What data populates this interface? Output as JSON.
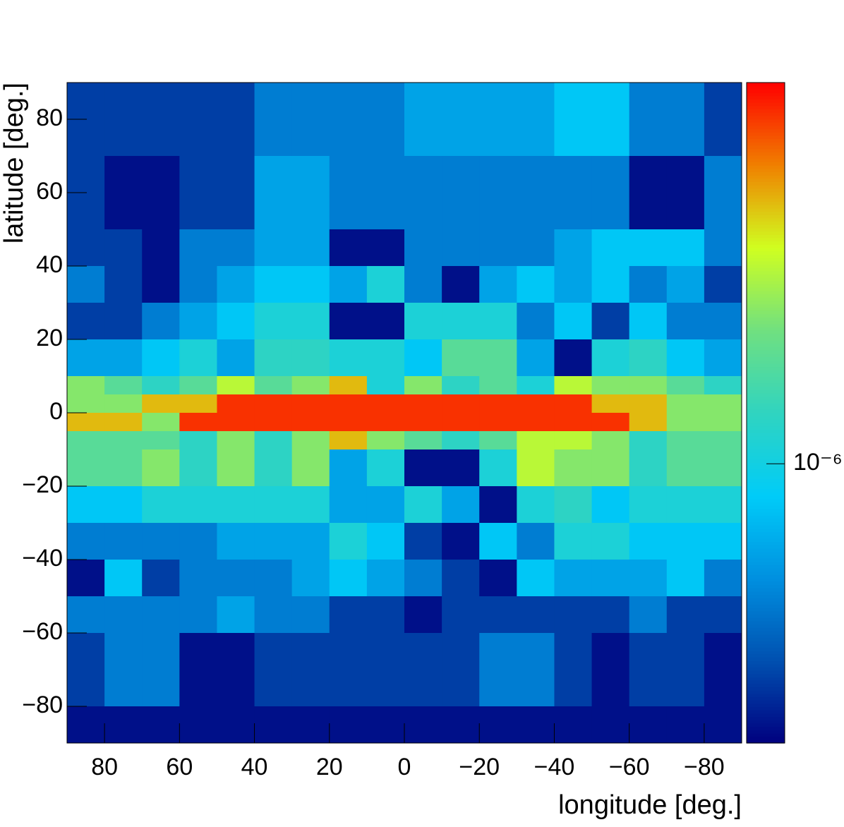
{
  "chart_data": {
    "type": "heatmap",
    "x_label": "longitude [deg.]",
    "y_label": "latitude [deg.]",
    "xlim": [
      90,
      -90
    ],
    "ylim": [
      -90,
      90
    ],
    "xticks": [
      80,
      60,
      40,
      20,
      0,
      {
        "value": -20,
        "label": "−20"
      },
      {
        "value": -40,
        "label": "−40"
      },
      {
        "value": -60,
        "label": "−60"
      },
      {
        "value": -80,
        "label": "−80"
      }
    ],
    "yticks": [
      {
        "value": -80,
        "label": "−80"
      },
      {
        "value": -60,
        "label": "−60"
      },
      {
        "value": -40,
        "label": "−40"
      },
      {
        "value": -20,
        "label": "−20"
      },
      0,
      20,
      40,
      60,
      80
    ],
    "zlim": [
      2e-07,
      9e-06
    ],
    "zticks": [
      {
        "value": 1e-06,
        "label": "10⁻⁶"
      }
    ],
    "z_log": true,
    "colormap": [
      "#00007f",
      "#0050b0",
      "#0090e0",
      "#00ccf8",
      "#30d4c0",
      "#70e080",
      "#d0ff20",
      "#f08000",
      "#ff0000"
    ],
    "xbins": [
      90,
      80,
      70,
      60,
      50,
      40,
      30,
      20,
      10,
      0,
      -10,
      -20,
      -30,
      -40,
      -50,
      -60,
      -70,
      -80,
      -90
    ],
    "ybins": [
      90,
      80,
      70,
      60,
      50,
      40,
      30,
      20,
      10,
      5,
      0,
      -5,
      -10,
      -20,
      -30,
      -40,
      -50,
      -60,
      -70,
      -80,
      -90
    ],
    "values": [
      [
        2.9e-07,
        2.9e-07,
        2.9e-07,
        2.9e-07,
        2.9e-07,
        4.5e-07,
        4.5e-07,
        4.5e-07,
        4.5e-07,
        6e-07,
        6e-07,
        6e-07,
        6e-07,
        8e-07,
        8e-07,
        4.5e-07,
        4.5e-07,
        2.9e-07
      ],
      [
        2.9e-07,
        2.9e-07,
        2.9e-07,
        2.9e-07,
        2.9e-07,
        4.5e-07,
        4.5e-07,
        4.5e-07,
        4.5e-07,
        6e-07,
        6e-07,
        6e-07,
        6e-07,
        8e-07,
        8e-07,
        4.5e-07,
        4.5e-07,
        2.9e-07
      ],
      [
        2.9e-07,
        2.2e-07,
        2.2e-07,
        2.9e-07,
        2.9e-07,
        6e-07,
        6e-07,
        4.5e-07,
        4.5e-07,
        4.5e-07,
        4.5e-07,
        4.5e-07,
        4.5e-07,
        4.5e-07,
        4.5e-07,
        2.2e-07,
        2.2e-07,
        4.5e-07
      ],
      [
        2.9e-07,
        2.2e-07,
        2.2e-07,
        2.9e-07,
        2.9e-07,
        6e-07,
        6e-07,
        4.5e-07,
        4.5e-07,
        4.5e-07,
        4.5e-07,
        4.5e-07,
        4.5e-07,
        4.5e-07,
        4.5e-07,
        2.2e-07,
        2.2e-07,
        4.5e-07
      ],
      [
        2.9e-07,
        2.9e-07,
        2.2e-07,
        4.5e-07,
        4.5e-07,
        6e-07,
        6e-07,
        2.2e-07,
        2.2e-07,
        4.5e-07,
        4.5e-07,
        4.5e-07,
        4.5e-07,
        6e-07,
        8e-07,
        8e-07,
        8e-07,
        4.5e-07
      ],
      [
        4.5e-07,
        2.9e-07,
        2.2e-07,
        4.5e-07,
        6e-07,
        8e-07,
        8e-07,
        6e-07,
        1.1e-06,
        4.5e-07,
        2.2e-07,
        6e-07,
        8e-07,
        6e-07,
        8e-07,
        4.5e-07,
        6e-07,
        2.9e-07
      ],
      [
        2.9e-07,
        2.9e-07,
        4.5e-07,
        6e-07,
        8e-07,
        1.1e-06,
        1.1e-06,
        2.2e-07,
        2.2e-07,
        1.1e-06,
        1.1e-06,
        1.1e-06,
        4.5e-07,
        8e-07,
        2.9e-07,
        8e-07,
        4.5e-07,
        4.5e-07
      ],
      [
        6e-07,
        6e-07,
        8e-07,
        1.1e-06,
        6e-07,
        1.3e-06,
        1.3e-06,
        1.1e-06,
        1.1e-06,
        8e-07,
        1.8e-06,
        1.8e-06,
        6e-07,
        2.2e-07,
        1.1e-06,
        1.3e-06,
        8e-07,
        6e-07
      ],
      [
        2.4e-06,
        1.8e-06,
        1.3e-06,
        1.8e-06,
        3.1e-06,
        1.8e-06,
        2.4e-06,
        4.5e-06,
        1.1e-06,
        2.4e-06,
        1.3e-06,
        1.8e-06,
        1.1e-06,
        3.1e-06,
        2.4e-06,
        2.4e-06,
        1.8e-06,
        1.3e-06
      ],
      [
        2.4e-06,
        2.4e-06,
        4.5e-06,
        4.5e-06,
        7.5e-06,
        7.5e-06,
        7.5e-06,
        7.5e-06,
        7.5e-06,
        7.5e-06,
        7.5e-06,
        7.5e-06,
        7.5e-06,
        7.5e-06,
        4.5e-06,
        4.5e-06,
        2.4e-06,
        2.4e-06
      ],
      [
        4.5e-06,
        4.5e-06,
        2.4e-06,
        7.5e-06,
        7.5e-06,
        7.5e-06,
        7.5e-06,
        7.5e-06,
        7.5e-06,
        7.5e-06,
        7.5e-06,
        7.5e-06,
        7.5e-06,
        7.5e-06,
        7.5e-06,
        4.5e-06,
        2.4e-06,
        2.4e-06
      ],
      [
        1.8e-06,
        1.8e-06,
        1.8e-06,
        1.3e-06,
        2.4e-06,
        1.3e-06,
        2.4e-06,
        4.5e-06,
        2.4e-06,
        1.8e-06,
        1.3e-06,
        1.8e-06,
        3.1e-06,
        3.1e-06,
        2.4e-06,
        1.3e-06,
        1.8e-06,
        1.8e-06
      ],
      [
        1.8e-06,
        1.8e-06,
        2.4e-06,
        1.3e-06,
        2.4e-06,
        1.3e-06,
        2.4e-06,
        6e-07,
        1.1e-06,
        2.2e-07,
        2.2e-07,
        1.1e-06,
        3.1e-06,
        2.4e-06,
        2.4e-06,
        1.3e-06,
        1.8e-06,
        1.8e-06
      ],
      [
        8e-07,
        8e-07,
        1.1e-06,
        1.1e-06,
        1.1e-06,
        1.1e-06,
        1.1e-06,
        6e-07,
        6e-07,
        1.1e-06,
        6e-07,
        2.2e-07,
        1.1e-06,
        1.3e-06,
        8e-07,
        1.1e-06,
        1.1e-06,
        1.1e-06
      ],
      [
        4.5e-07,
        4.5e-07,
        4.5e-07,
        4.5e-07,
        6e-07,
        6e-07,
        6e-07,
        1.1e-06,
        8e-07,
        2.9e-07,
        2.2e-07,
        8e-07,
        4.5e-07,
        1.1e-06,
        1.1e-06,
        8e-07,
        8e-07,
        8e-07
      ],
      [
        2.2e-07,
        8e-07,
        2.9e-07,
        4.5e-07,
        4.5e-07,
        4.5e-07,
        6e-07,
        8e-07,
        6e-07,
        4.5e-07,
        2.9e-07,
        2.2e-07,
        8e-07,
        6e-07,
        6e-07,
        6e-07,
        8e-07,
        4.5e-07
      ],
      [
        4.5e-07,
        4.5e-07,
        4.5e-07,
        4.5e-07,
        6e-07,
        4.5e-07,
        4.5e-07,
        2.9e-07,
        2.9e-07,
        2.2e-07,
        2.9e-07,
        2.9e-07,
        2.9e-07,
        2.9e-07,
        2.9e-07,
        4.5e-07,
        2.9e-07,
        2.9e-07
      ],
      [
        2.9e-07,
        4.5e-07,
        4.5e-07,
        2.2e-07,
        2.2e-07,
        2.9e-07,
        2.9e-07,
        2.9e-07,
        2.9e-07,
        2.9e-07,
        2.9e-07,
        4.5e-07,
        4.5e-07,
        2.9e-07,
        2.2e-07,
        2.9e-07,
        2.9e-07,
        2.2e-07
      ],
      [
        2.9e-07,
        4.5e-07,
        4.5e-07,
        2.2e-07,
        2.2e-07,
        2.9e-07,
        2.9e-07,
        2.9e-07,
        2.9e-07,
        2.9e-07,
        2.9e-07,
        4.5e-07,
        4.5e-07,
        2.9e-07,
        2.2e-07,
        2.9e-07,
        2.9e-07,
        2.2e-07
      ],
      [
        2.2e-07,
        2.2e-07,
        2.2e-07,
        2.2e-07,
        2.2e-07,
        2.2e-07,
        2.2e-07,
        2.2e-07,
        2.2e-07,
        2.2e-07,
        2.2e-07,
        2.2e-07,
        2.2e-07,
        2.2e-07,
        2.2e-07,
        2.2e-07,
        2.2e-07,
        2.2e-07
      ]
    ]
  }
}
